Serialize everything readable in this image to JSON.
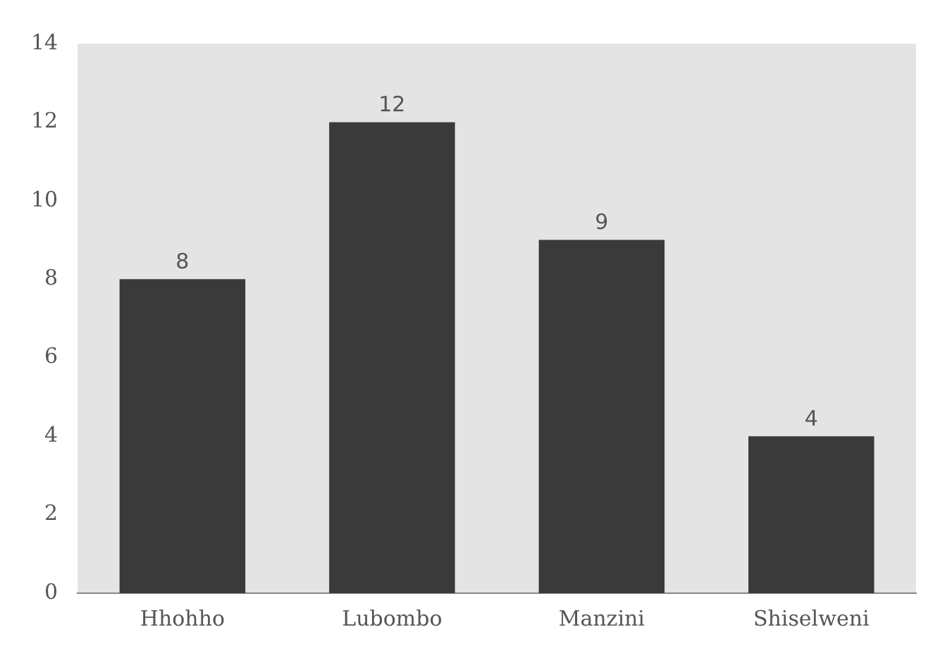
{
  "chart_data": {
    "type": "bar",
    "categories": [
      "Hhohho",
      "Lubombo",
      "Manzini",
      "Shiselweni"
    ],
    "values": [
      8,
      12,
      9,
      4
    ],
    "color": "#3a3a3a",
    "ylim": [
      0,
      14
    ],
    "yticks": [
      0,
      2,
      4,
      6,
      8,
      10,
      12,
      14
    ],
    "grid": false,
    "data_labels": true,
    "legend": false
  }
}
